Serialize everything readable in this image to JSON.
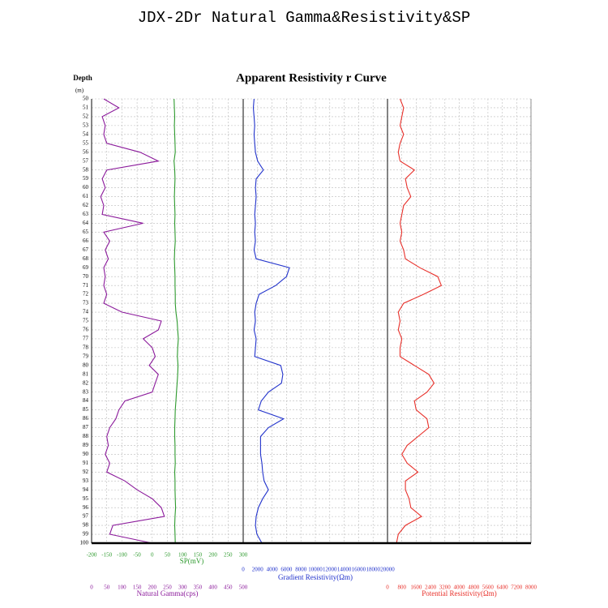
{
  "chart_data": {
    "type": "well-log",
    "title": "JDX-2Dr Natural Gamma&Resistivity&SP",
    "subtitle": "Apparent Resistivity r Curve",
    "y_label": "Depth",
    "y_unit": "(m)",
    "ylim": [
      50,
      100
    ],
    "yticks": [
      50,
      51,
      52,
      53,
      54,
      55,
      56,
      57,
      58,
      59,
      60,
      61,
      62,
      63,
      64,
      65,
      66,
      67,
      68,
      69,
      70,
      71,
      72,
      73,
      74,
      75,
      76,
      77,
      78,
      79,
      80,
      81,
      82,
      83,
      84,
      85,
      86,
      87,
      88,
      89,
      90,
      91,
      92,
      93,
      94,
      95,
      96,
      97,
      98,
      99,
      100
    ],
    "depths": [
      50,
      51,
      52,
      53,
      54,
      55,
      56,
      57,
      58,
      59,
      60,
      61,
      62,
      63,
      64,
      65,
      66,
      67,
      68,
      69,
      70,
      71,
      72,
      73,
      74,
      75,
      76,
      77,
      78,
      79,
      80,
      81,
      82,
      83,
      84,
      85,
      86,
      87,
      88,
      89,
      90,
      91,
      92,
      93,
      94,
      95,
      96,
      97,
      98,
      99,
      100
    ],
    "grid": true,
    "tracks": [
      {
        "series": [
          {
            "name": "Natural Gamma(cps)",
            "color": "#8b1a9b",
            "xlim": [
              0,
              500
            ],
            "xticks": [
              0,
              50,
              100,
              150,
              200,
              250,
              300,
              350,
              400,
              450,
              500
            ],
            "values": [
              40,
              90,
              35,
              45,
              40,
              50,
              160,
              220,
              50,
              35,
              45,
              30,
              40,
              35,
              170,
              40,
              60,
              45,
              55,
              40,
              45,
              40,
              50,
              40,
              100,
              230,
              220,
              170,
              200,
              210,
              190,
              220,
              210,
              200,
              110,
              90,
              80,
              60,
              50,
              55,
              45,
              60,
              50,
              110,
              150,
              200,
              230,
              240,
              70,
              60,
              200
            ]
          },
          {
            "name": "SP(mV)",
            "color": "#2e9a2e",
            "xlim": [
              -200,
              300
            ],
            "xticks": [
              -200,
              -150,
              -100,
              -50,
              0,
              50,
              100,
              150,
              200,
              250,
              300
            ],
            "values": [
              72,
              73,
              74,
              73,
              74,
              75,
              76,
              72,
              74,
              75,
              74,
              73,
              74,
              75,
              74,
              75,
              76,
              74,
              73,
              74,
              75,
              75,
              76,
              76,
              78,
              82,
              84,
              86,
              84,
              83,
              85,
              84,
              82,
              80,
              78,
              76,
              75,
              74,
              74,
              75,
              75,
              76,
              74,
              75,
              75,
              76,
              77,
              75,
              74,
              75,
              76
            ]
          }
        ]
      },
      {
        "series": [
          {
            "name": "Gradient Resistivity(Ωm)",
            "color": "#2233cc",
            "xlim": [
              0,
              20000
            ],
            "xticks": [
              0,
              2000,
              4000,
              6000,
              8000,
              10000,
              12000,
              14000,
              16000,
              18000,
              20000
            ],
            "values": [
              1500,
              1400,
              1500,
              1600,
              1500,
              1600,
              1700,
              2000,
              2800,
              1800,
              1700,
              1800,
              1700,
              1600,
              1700,
              1600,
              1700,
              1500,
              1800,
              6400,
              6000,
              4500,
              2200,
              1800,
              1600,
              1700,
              1500,
              1800,
              1700,
              1600,
              5200,
              5500,
              5300,
              3500,
              2500,
              2100,
              5600,
              3500,
              2400,
              2400,
              2400,
              2600,
              2700,
              2900,
              3500,
              2700,
              2100,
              1800,
              1700,
              1900,
              2600
            ]
          }
        ]
      },
      {
        "series": [
          {
            "name": "Potential Resistivity(Ωm)",
            "color": "#e8302a",
            "xlim": [
              0,
              8000
            ],
            "xticks": [
              0,
              800,
              1600,
              2400,
              3200,
              4000,
              4800,
              5600,
              6400,
              7200,
              8000
            ],
            "values": [
              700,
              900,
              800,
              700,
              900,
              700,
              600,
              700,
              1500,
              1000,
              1100,
              1300,
              900,
              800,
              700,
              800,
              700,
              900,
              1000,
              1800,
              2800,
              3000,
              2000,
              900,
              600,
              700,
              600,
              800,
              700,
              700,
              1500,
              2300,
              2600,
              2200,
              1500,
              1600,
              2200,
              2300,
              1700,
              1100,
              800,
              1100,
              1700,
              1000,
              1000,
              1200,
              1300,
              1900,
              1000,
              600,
              500
            ]
          }
        ]
      }
    ]
  }
}
